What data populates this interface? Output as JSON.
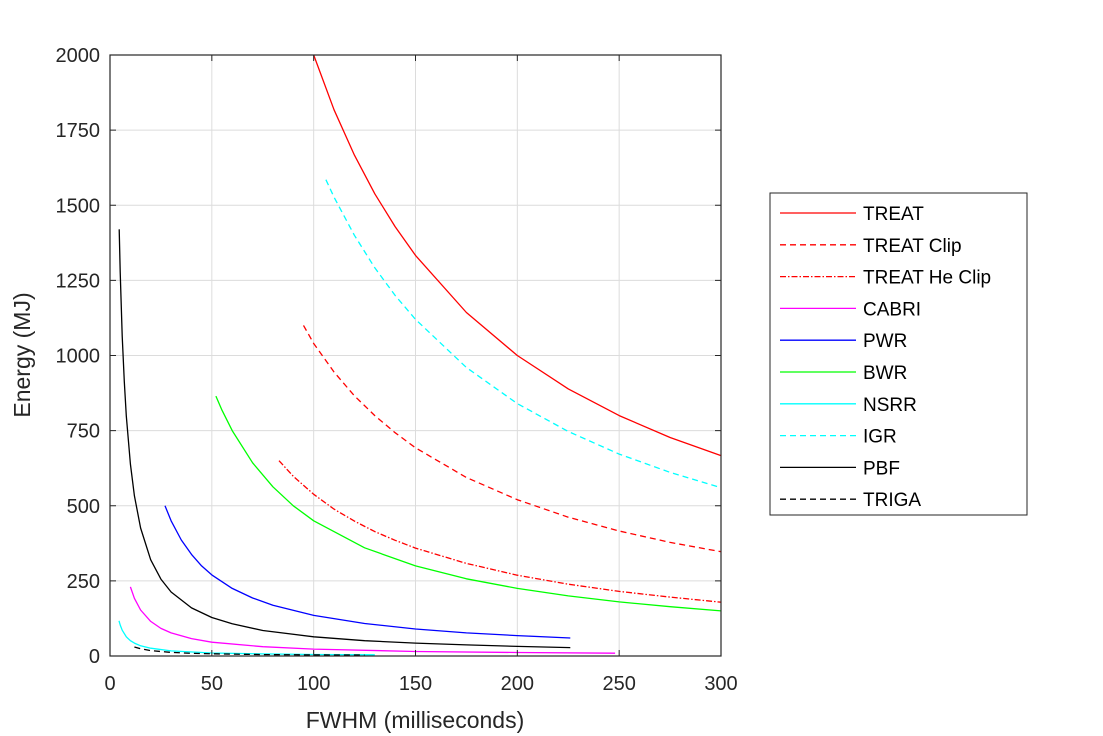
{
  "chart_data": {
    "type": "line",
    "title": "",
    "xlabel": "FWHM (milliseconds)",
    "ylabel": "Energy (MJ)",
    "xlim": [
      0,
      300
    ],
    "ylim": [
      0,
      2000
    ],
    "x_ticks": [
      0,
      50,
      100,
      150,
      200,
      250,
      300
    ],
    "y_ticks": [
      0,
      250,
      500,
      750,
      1000,
      1250,
      1500,
      1750,
      2000
    ],
    "grid": true,
    "legend_position": "outside-right",
    "series": [
      {
        "name": "TREAT",
        "color": "#ff0000",
        "dash": "solid",
        "x": [
          100,
          110,
          120,
          130,
          140,
          150,
          175,
          200,
          225,
          250,
          275,
          300
        ],
        "y": [
          2000,
          1818,
          1667,
          1538,
          1429,
          1333,
          1143,
          1000,
          889,
          800,
          727,
          667
        ]
      },
      {
        "name": "TREAT Clip",
        "color": "#ff0000",
        "dash": "dashed",
        "x": [
          95,
          100,
          110,
          120,
          130,
          140,
          150,
          175,
          200,
          225,
          250,
          275,
          300
        ],
        "y": [
          1100,
          1040,
          945,
          866,
          800,
          743,
          693,
          594,
          520,
          462,
          416,
          378,
          347
        ]
      },
      {
        "name": "TREAT He Clip",
        "color": "#ff0000",
        "dash": "dashdot",
        "x": [
          83,
          90,
          100,
          110,
          120,
          130,
          140,
          150,
          175,
          200,
          225,
          250,
          275,
          300
        ],
        "y": [
          650,
          598,
          538,
          489,
          449,
          414,
          385,
          359,
          308,
          269,
          239,
          215,
          196,
          179
        ]
      },
      {
        "name": "CABRI",
        "color": "#ff00ff",
        "dash": "solid",
        "x": [
          10,
          12,
          15,
          20,
          25,
          30,
          40,
          50,
          75,
          100,
          150,
          200,
          248
        ],
        "y": [
          230,
          192,
          153,
          115,
          92,
          77,
          58,
          46,
          31,
          23,
          15,
          11.5,
          9.3
        ]
      },
      {
        "name": "PWR",
        "color": "#0000ff",
        "dash": "solid",
        "x": [
          27,
          30,
          35,
          40,
          45,
          50,
          60,
          70,
          80,
          100,
          125,
          150,
          175,
          200,
          226
        ],
        "y": [
          500,
          450,
          386,
          338,
          300,
          270,
          225,
          193,
          169,
          135,
          108,
          90,
          77,
          68,
          60
        ]
      },
      {
        "name": "BWR",
        "color": "#00ff00",
        "dash": "solid",
        "x": [
          52,
          55,
          60,
          70,
          80,
          90,
          100,
          125,
          150,
          175,
          200,
          225,
          250,
          275,
          300
        ],
        "y": [
          865,
          818,
          750,
          643,
          563,
          500,
          450,
          360,
          300,
          257,
          225,
          200,
          180,
          164,
          150
        ]
      },
      {
        "name": "NSRR",
        "color": "#00ffff",
        "dash": "solid",
        "x": [
          4.4,
          5,
          6,
          8,
          10,
          12,
          15,
          20,
          30,
          50,
          75,
          100,
          130
        ],
        "y": [
          117,
          103,
          86,
          64,
          51,
          43,
          34,
          26,
          17,
          10,
          7,
          5,
          4
        ]
      },
      {
        "name": "IGR",
        "color": "#00ffff",
        "dash": "dashed",
        "x": [
          106,
          110,
          120,
          130,
          140,
          150,
          175,
          200,
          225,
          250,
          275,
          300
        ],
        "y": [
          1585,
          1527,
          1400,
          1292,
          1200,
          1120,
          960,
          840,
          747,
          672,
          611,
          560
        ]
      },
      {
        "name": "PBF",
        "color": "#000000",
        "dash": "solid",
        "x": [
          4.5,
          5,
          6,
          7,
          8,
          10,
          12,
          15,
          20,
          25,
          30,
          40,
          50,
          60,
          75,
          100,
          125,
          150,
          175,
          200,
          226
        ],
        "y": [
          1420,
          1278,
          1065,
          913,
          799,
          639,
          533,
          426,
          320,
          256,
          213,
          160,
          128,
          107,
          85,
          64,
          51,
          43,
          37,
          32,
          28
        ]
      },
      {
        "name": "TRIGA",
        "color": "#000000",
        "dash": "dashed",
        "x": [
          12,
          15,
          20,
          30,
          40,
          50,
          75,
          100,
          125
        ],
        "y": [
          30,
          24,
          18,
          12,
          9,
          7.2,
          4.8,
          3.6,
          2.9
        ]
      }
    ]
  }
}
